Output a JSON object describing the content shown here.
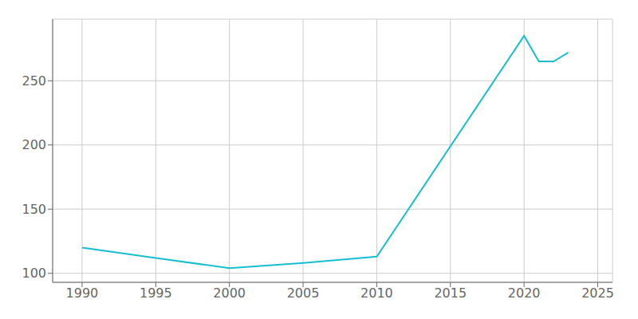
{
  "chart_data": {
    "type": "line",
    "x": [
      1990,
      1995,
      2000,
      2005,
      2010,
      2020,
      2021,
      2022,
      2023
    ],
    "values": [
      120,
      112,
      104,
      108,
      113,
      285,
      265,
      265,
      272
    ],
    "color": "#17becf",
    "xlim": [
      1988,
      2026
    ],
    "ylim": [
      93,
      298
    ],
    "xticks": [
      1990,
      1995,
      2000,
      2005,
      2010,
      2015,
      2020,
      2025
    ],
    "yticks": [
      100,
      150,
      200,
      250
    ],
    "grid": true
  }
}
